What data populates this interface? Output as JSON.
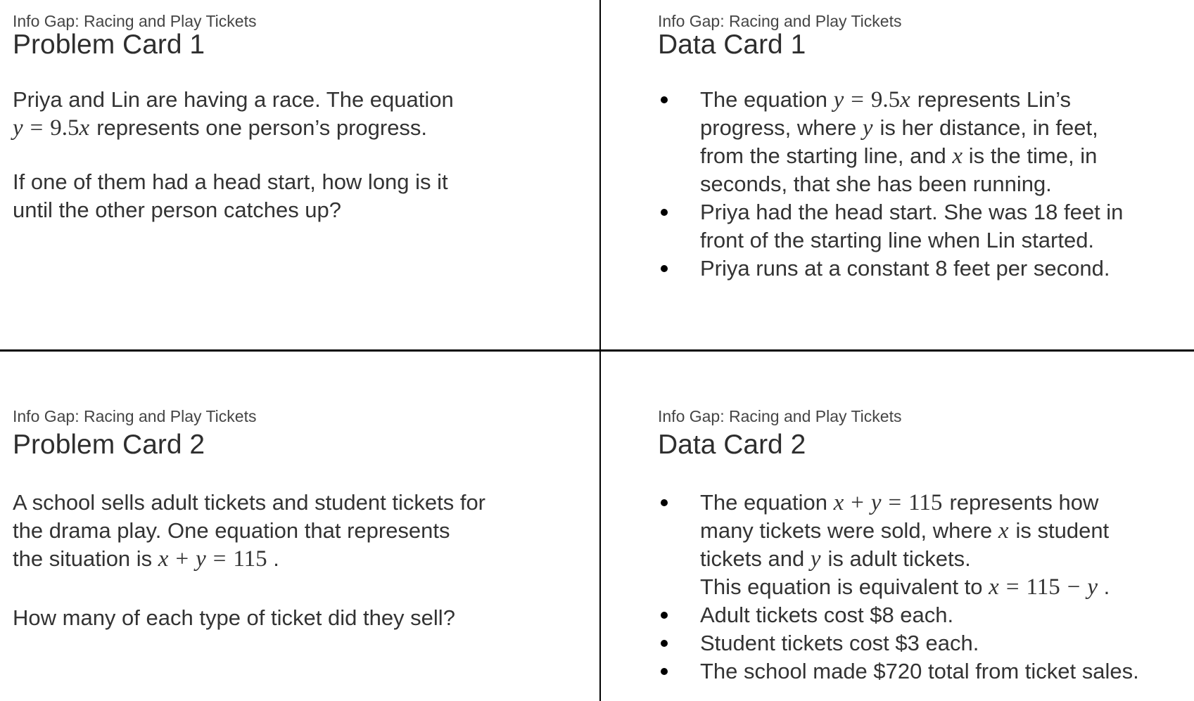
{
  "page": {
    "background": "#ffffff",
    "divider_color": "#000000",
    "text_color": "#333333",
    "activity_title": "Info Gap: Racing and Play Tickets"
  },
  "cards": [
    {
      "id": "problem-card-1",
      "eyebrow": "Info Gap: Racing and Play Tickets",
      "title": "Problem Card 1",
      "type": "paragraphs",
      "paragraphs": [
        {
          "lines": [
            [
              [
                "tx",
                "Priya and Lin are having a race. The equation"
              ]
            ],
            [
              [
                "it",
                "y"
              ],
              [
                "op",
                "="
              ],
              [
                "rm",
                "9.5"
              ],
              [
                "it",
                "x"
              ],
              [
                "g",
                ""
              ],
              [
                "tx",
                "represents one person’s progress."
              ]
            ]
          ]
        },
        {
          "lines": [
            [
              [
                "tx",
                "If one of them had a head start, how long is it"
              ]
            ],
            [
              [
                "tx",
                "until the other person catches up?"
              ]
            ]
          ]
        }
      ]
    },
    {
      "id": "data-card-1",
      "eyebrow": "Info Gap: Racing and Play Tickets",
      "title": "Data Card 1",
      "type": "bullets",
      "bullets": [
        {
          "lines": [
            [
              [
                "tx",
                "The equation "
              ],
              [
                "it",
                "y"
              ],
              [
                "op",
                "="
              ],
              [
                "rm",
                "9.5"
              ],
              [
                "it",
                "x"
              ],
              [
                "g",
                ""
              ],
              [
                "tx",
                "represents Lin’s"
              ]
            ],
            [
              [
                "tx",
                "progress, where "
              ],
              [
                "it",
                "y"
              ],
              [
                "g",
                ""
              ],
              [
                "tx",
                "is her distance, in feet,"
              ]
            ],
            [
              [
                "tx",
                "from the starting line, and "
              ],
              [
                "it",
                "x"
              ],
              [
                "tx",
                " is the time, in"
              ]
            ],
            [
              [
                "tx",
                "seconds, that she has been running."
              ]
            ]
          ]
        },
        {
          "lines": [
            [
              [
                "tx",
                "Priya had the head start. She was 18 feet in"
              ]
            ],
            [
              [
                "tx",
                "front of the starting line when Lin started."
              ]
            ]
          ]
        },
        {
          "lines": [
            [
              [
                "tx",
                "Priya runs at a constant 8 feet per second."
              ]
            ]
          ]
        }
      ]
    },
    {
      "id": "problem-card-2",
      "eyebrow": "Info Gap: Racing and Play Tickets",
      "title": "Problem Card 2",
      "type": "paragraphs",
      "paragraphs": [
        {
          "lines": [
            [
              [
                "tx",
                "A school sells adult tickets and student tickets for"
              ]
            ],
            [
              [
                "tx",
                "the drama play. One equation that represents"
              ]
            ],
            [
              [
                "tx",
                "the situation is "
              ],
              [
                "it",
                "x"
              ],
              [
                "op",
                "+"
              ],
              [
                "it",
                "y"
              ],
              [
                "op",
                "="
              ],
              [
                "rm",
                "115"
              ],
              [
                "tx",
                " ."
              ]
            ]
          ]
        },
        {
          "lines": [
            [
              [
                "tx",
                "How many of each type of ticket did they sell?"
              ]
            ]
          ]
        }
      ]
    },
    {
      "id": "data-card-2",
      "eyebrow": "Info Gap: Racing and Play Tickets",
      "title": "Data Card 2",
      "type": "bullets",
      "bullets": [
        {
          "lines": [
            [
              [
                "tx",
                "The equation "
              ],
              [
                "it",
                "x"
              ],
              [
                "op",
                "+"
              ],
              [
                "it",
                "y"
              ],
              [
                "op",
                "="
              ],
              [
                "rm",
                "115"
              ],
              [
                "g",
                ""
              ],
              [
                "tx",
                "represents how"
              ]
            ],
            [
              [
                "tx",
                "many tickets were sold, where "
              ],
              [
                "it",
                "x"
              ],
              [
                "g",
                ""
              ],
              [
                "tx",
                "is student"
              ]
            ],
            [
              [
                "tx",
                "tickets and "
              ],
              [
                "it",
                "y"
              ],
              [
                "g",
                ""
              ],
              [
                "tx",
                "is adult tickets."
              ]
            ],
            [
              [
                "tx",
                "This equation is equivalent to "
              ],
              [
                "it",
                "x"
              ],
              [
                "op",
                "="
              ],
              [
                "rm",
                "115"
              ],
              [
                "op",
                "−"
              ],
              [
                "it",
                "y"
              ],
              [
                "tx",
                " ."
              ]
            ]
          ]
        },
        {
          "lines": [
            [
              [
                "tx",
                "Adult tickets cost $8 each."
              ]
            ]
          ]
        },
        {
          "lines": [
            [
              [
                "tx",
                "Student tickets cost $3 each."
              ]
            ]
          ]
        },
        {
          "lines": [
            [
              [
                "tx",
                "The school made $720 total from ticket sales."
              ]
            ]
          ]
        }
      ]
    }
  ]
}
